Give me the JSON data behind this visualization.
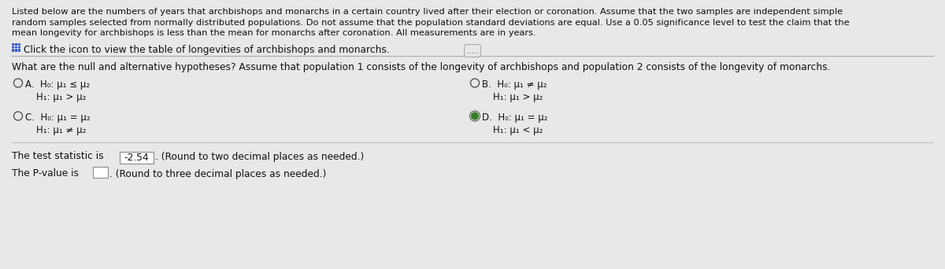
{
  "outer_bg": "#d0d0d0",
  "inner_bg": "#f0f0f0",
  "white_bg": "#ffffff",
  "header_text_line1": "Listed below are the numbers of years that archbishops and monarchs in a certain country lived after their election or coronation. Assume that the two samples are independent simple",
  "header_text_line2": "random samples selected from normally distributed populations. Do not assume that the population standard deviations are equal. Use a 0.05 significance level to test the claim that the",
  "header_text_line3": "mean longevity for archbishops is less than the mean for monarchs after coronation. All measurements are in years.",
  "icon_text": "Click the icon to view the table of longevities of archbishops and monarchs.",
  "divider_dots": ".....",
  "question_text": "What are the null and alternative hypotheses? Assume that population 1 consists of the longevity of archbishops and population 2 consists of the longevity of monarchs.",
  "option_A_H0": "H₀: μ₁ ≤ μ₂",
  "option_A_H1": "H₁: μ₁ > μ₂",
  "option_B_H0": "H₀: μ₁ ≠ μ₂",
  "option_B_H1": "H₁: μ₁ > μ₂",
  "option_C_H0": "H₀: μ₁ = μ₂",
  "option_C_H1": "H₁: μ₁ ≠ μ₂",
  "option_D_H0": "H₀: μ₁ = μ₂",
  "option_D_H1": "H₁: μ₁ < μ₂",
  "test_stat_text": "The test statistic is",
  "test_stat_value": "-2.54",
  "test_stat_suffix": ". (Round to two decimal places as needed.)",
  "pvalue_text": "The P-value is",
  "pvalue_suffix": ". (Round to three decimal places as needed.)",
  "font_size_header": 8.2,
  "font_size_icon": 8.8,
  "font_size_question": 8.8,
  "font_size_options": 8.5,
  "font_size_bottom": 8.8,
  "text_color": "#111111",
  "radio_color": "#555555",
  "selected_green": "#3a7d2c",
  "box_edge_color": "#888888",
  "header_bg": "#e8e8e8",
  "content_bg": "#ebebeb",
  "divider_color": "#aaaaaa",
  "icon_blue": "#3355cc"
}
